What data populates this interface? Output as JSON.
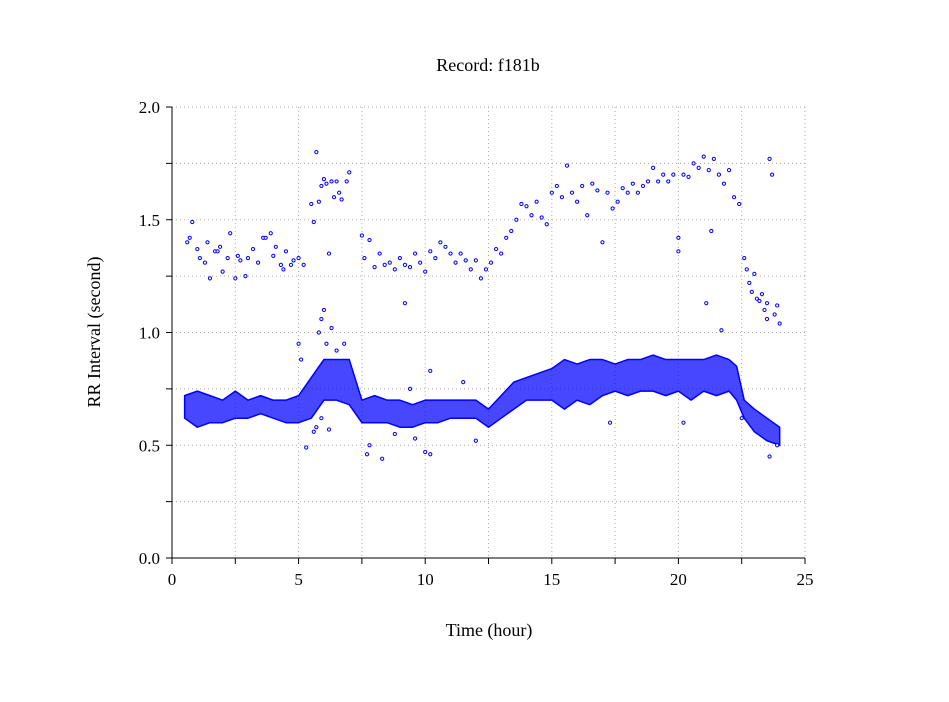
{
  "chart_data": {
    "type": "scatter",
    "title": "Record:  f181b",
    "xlabel": "Time (hour)",
    "ylabel": "RR Interval (second)",
    "xlim": [
      0,
      25
    ],
    "ylim": [
      0,
      2.0
    ],
    "xticks": [
      "0",
      "5",
      "10",
      "15",
      "20",
      "25"
    ],
    "xtick_values": [
      0,
      5,
      10,
      15,
      20,
      25
    ],
    "yticks": [
      "0.0",
      "0.5",
      "1.0",
      "1.5",
      "2.0"
    ],
    "ytick_values": [
      0,
      0.5,
      1.0,
      1.5,
      2.0
    ],
    "grid": true,
    "marker_color": "#0000ff",
    "main_band": {
      "x": [
        0.5,
        1,
        1.5,
        2,
        2.5,
        3,
        3.5,
        4,
        4.5,
        5,
        5.5,
        6,
        6.5,
        7,
        7.5,
        8,
        8.5,
        9,
        9.5,
        10,
        10.5,
        11,
        11.5,
        12,
        12.5,
        13,
        13.5,
        14,
        14.5,
        15,
        15.5,
        16,
        16.5,
        17,
        17.5,
        18,
        18.5,
        19,
        19.5,
        20,
        20.5,
        21,
        21.5,
        22,
        22.3,
        22.6,
        23,
        23.5,
        24
      ],
      "low": [
        0.62,
        0.58,
        0.6,
        0.6,
        0.62,
        0.62,
        0.64,
        0.62,
        0.6,
        0.6,
        0.62,
        0.7,
        0.7,
        0.68,
        0.6,
        0.6,
        0.6,
        0.58,
        0.58,
        0.6,
        0.6,
        0.62,
        0.62,
        0.62,
        0.58,
        0.62,
        0.66,
        0.7,
        0.7,
        0.7,
        0.66,
        0.7,
        0.68,
        0.72,
        0.74,
        0.72,
        0.74,
        0.74,
        0.72,
        0.74,
        0.7,
        0.74,
        0.72,
        0.74,
        0.7,
        0.62,
        0.56,
        0.52,
        0.5
      ],
      "high": [
        0.72,
        0.74,
        0.72,
        0.7,
        0.74,
        0.7,
        0.72,
        0.7,
        0.7,
        0.72,
        0.8,
        0.88,
        0.88,
        0.88,
        0.7,
        0.72,
        0.7,
        0.7,
        0.68,
        0.7,
        0.7,
        0.7,
        0.7,
        0.7,
        0.66,
        0.72,
        0.78,
        0.8,
        0.82,
        0.84,
        0.88,
        0.86,
        0.88,
        0.88,
        0.86,
        0.88,
        0.88,
        0.9,
        0.88,
        0.88,
        0.88,
        0.88,
        0.9,
        0.88,
        0.85,
        0.7,
        0.66,
        0.62,
        0.58
      ]
    },
    "points": [
      [
        0.6,
        1.4
      ],
      [
        0.7,
        1.42
      ],
      [
        0.8,
        1.49
      ],
      [
        1.0,
        1.37
      ],
      [
        1.1,
        1.33
      ],
      [
        1.3,
        1.31
      ],
      [
        1.4,
        1.4
      ],
      [
        1.5,
        1.24
      ],
      [
        1.7,
        1.36
      ],
      [
        1.8,
        1.36
      ],
      [
        1.9,
        1.38
      ],
      [
        2.0,
        1.27
      ],
      [
        2.2,
        1.33
      ],
      [
        2.3,
        1.44
      ],
      [
        2.5,
        1.24
      ],
      [
        2.6,
        1.34
      ],
      [
        2.7,
        1.32
      ],
      [
        2.9,
        1.25
      ],
      [
        3.0,
        1.33
      ],
      [
        3.2,
        1.37
      ],
      [
        3.4,
        1.31
      ],
      [
        3.6,
        1.42
      ],
      [
        3.7,
        1.42
      ],
      [
        3.9,
        1.44
      ],
      [
        4.0,
        1.34
      ],
      [
        4.1,
        1.38
      ],
      [
        4.3,
        1.3
      ],
      [
        4.4,
        1.28
      ],
      [
        4.5,
        1.36
      ],
      [
        4.7,
        1.3
      ],
      [
        4.8,
        1.32
      ],
      [
        5.0,
        1.33
      ],
      [
        5.2,
        1.3
      ],
      [
        5.5,
        1.57
      ],
      [
        5.6,
        1.49
      ],
      [
        5.7,
        1.8
      ],
      [
        5.8,
        1.58
      ],
      [
        5.9,
        1.65
      ],
      [
        6.0,
        1.68
      ],
      [
        6.1,
        1.66
      ],
      [
        6.3,
        1.67
      ],
      [
        6.4,
        1.6
      ],
      [
        6.5,
        1.67
      ],
      [
        6.6,
        1.62
      ],
      [
        6.7,
        1.59
      ],
      [
        6.9,
        1.67
      ],
      [
        7.0,
        1.71
      ],
      [
        6.2,
        1.35
      ],
      [
        7.5,
        1.43
      ],
      [
        7.6,
        1.33
      ],
      [
        7.8,
        1.41
      ],
      [
        8.0,
        1.29
      ],
      [
        8.2,
        1.35
      ],
      [
        8.4,
        1.3
      ],
      [
        8.6,
        1.31
      ],
      [
        8.8,
        1.28
      ],
      [
        9.0,
        1.33
      ],
      [
        9.2,
        1.3
      ],
      [
        9.4,
        1.29
      ],
      [
        9.6,
        1.35
      ],
      [
        9.8,
        1.31
      ],
      [
        10.0,
        1.27
      ],
      [
        10.2,
        1.36
      ],
      [
        10.4,
        1.33
      ],
      [
        10.6,
        1.4
      ],
      [
        10.8,
        1.38
      ],
      [
        11.0,
        1.35
      ],
      [
        11.2,
        1.31
      ],
      [
        11.4,
        1.35
      ],
      [
        11.6,
        1.32
      ],
      [
        11.8,
        1.28
      ],
      [
        12.0,
        1.32
      ],
      [
        12.2,
        1.24
      ],
      [
        12.4,
        1.28
      ],
      [
        12.6,
        1.31
      ],
      [
        12.8,
        1.37
      ],
      [
        13.0,
        1.35
      ],
      [
        13.2,
        1.42
      ],
      [
        13.4,
        1.45
      ],
      [
        13.6,
        1.5
      ],
      [
        13.8,
        1.57
      ],
      [
        14.0,
        1.56
      ],
      [
        14.2,
        1.52
      ],
      [
        14.4,
        1.58
      ],
      [
        14.6,
        1.51
      ],
      [
        14.8,
        1.48
      ],
      [
        15.0,
        1.62
      ],
      [
        15.2,
        1.65
      ],
      [
        15.4,
        1.6
      ],
      [
        15.6,
        1.74
      ],
      [
        15.8,
        1.62
      ],
      [
        16.0,
        1.58
      ],
      [
        16.2,
        1.65
      ],
      [
        16.4,
        1.52
      ],
      [
        16.6,
        1.66
      ],
      [
        16.8,
        1.63
      ],
      [
        17.0,
        1.4
      ],
      [
        17.2,
        1.62
      ],
      [
        17.4,
        1.55
      ],
      [
        17.6,
        1.58
      ],
      [
        17.8,
        1.64
      ],
      [
        18.0,
        1.62
      ],
      [
        18.2,
        1.66
      ],
      [
        18.4,
        1.62
      ],
      [
        18.6,
        1.65
      ],
      [
        18.8,
        1.67
      ],
      [
        19.0,
        1.73
      ],
      [
        19.2,
        1.67
      ],
      [
        19.4,
        1.7
      ],
      [
        19.6,
        1.67
      ],
      [
        19.8,
        1.7
      ],
      [
        20.0,
        1.42
      ],
      [
        20.2,
        1.7
      ],
      [
        20.4,
        1.69
      ],
      [
        20.6,
        1.75
      ],
      [
        20.8,
        1.73
      ],
      [
        21.0,
        1.78
      ],
      [
        21.2,
        1.72
      ],
      [
        21.4,
        1.77
      ],
      [
        21.6,
        1.7
      ],
      [
        21.8,
        1.66
      ],
      [
        22.0,
        1.72
      ],
      [
        22.2,
        1.6
      ],
      [
        22.4,
        1.57
      ],
      [
        21.3,
        1.45
      ],
      [
        20.0,
        1.36
      ],
      [
        22.6,
        1.33
      ],
      [
        22.7,
        1.28
      ],
      [
        22.8,
        1.22
      ],
      [
        22.9,
        1.18
      ],
      [
        23.0,
        1.26
      ],
      [
        23.1,
        1.15
      ],
      [
        23.3,
        1.17
      ],
      [
        23.4,
        1.1
      ],
      [
        23.5,
        1.13
      ],
      [
        23.6,
        1.77
      ],
      [
        23.7,
        1.7
      ],
      [
        23.8,
        1.08
      ],
      [
        23.9,
        1.12
      ],
      [
        24.0,
        1.04
      ],
      [
        23.2,
        1.14
      ],
      [
        23.5,
        1.06
      ],
      [
        21.7,
        1.01
      ],
      [
        21.1,
        1.13
      ],
      [
        5.0,
        0.95
      ],
      [
        5.1,
        0.88
      ],
      [
        5.3,
        0.49
      ],
      [
        5.6,
        0.56
      ],
      [
        5.7,
        0.58
      ],
      [
        5.8,
        1.0
      ],
      [
        5.9,
        1.06
      ],
      [
        6.0,
        1.1
      ],
      [
        6.1,
        0.95
      ],
      [
        6.3,
        1.02
      ],
      [
        6.5,
        0.92
      ],
      [
        5.9,
        0.62
      ],
      [
        6.2,
        0.57
      ],
      [
        6.8,
        0.95
      ],
      [
        7.8,
        0.5
      ],
      [
        7.7,
        0.46
      ],
      [
        8.3,
        0.44
      ],
      [
        8.8,
        0.55
      ],
      [
        9.2,
        1.13
      ],
      [
        9.4,
        0.75
      ],
      [
        9.6,
        0.53
      ],
      [
        10.0,
        0.47
      ],
      [
        10.2,
        0.46
      ],
      [
        10.2,
        0.83
      ],
      [
        11.5,
        0.78
      ],
      [
        12.0,
        0.52
      ],
      [
        17.3,
        0.6
      ],
      [
        20.2,
        0.6
      ],
      [
        22.5,
        0.62
      ],
      [
        23.6,
        0.45
      ],
      [
        23.9,
        0.5
      ]
    ]
  }
}
